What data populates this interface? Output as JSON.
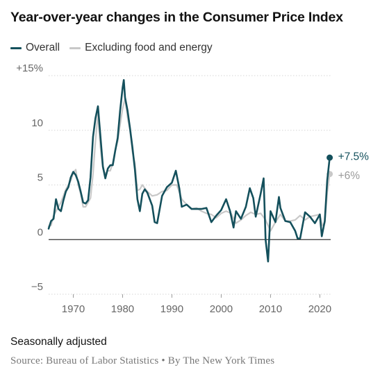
{
  "title": "Year-over-year changes in the Consumer Price Index",
  "legend": {
    "overall": "Overall",
    "core": "Excluding food and energy"
  },
  "note": "Seasonally adjusted",
  "source": "Source: Bureau of Labor Statistics • By The New York Times",
  "colors": {
    "overall": "#14505c",
    "core": "#c8c8c8",
    "zero_line": "#333333",
    "grid": "#d6d6d6",
    "text": "#121212",
    "muted": "#777777"
  },
  "chart_data": {
    "type": "line",
    "xlim": [
      1965,
      2022.2
    ],
    "ylim": [
      -5,
      15
    ],
    "grid": true,
    "y_ticks": [
      {
        "value": 15,
        "label": "+15%"
      },
      {
        "value": 10,
        "label": "10"
      },
      {
        "value": 5,
        "label": "5"
      },
      {
        "value": 0,
        "label": "0"
      },
      {
        "value": -5,
        "label": "−5"
      }
    ],
    "x_ticks": [
      {
        "value": 1970,
        "label": "1970"
      },
      {
        "value": 1980,
        "label": "1980"
      },
      {
        "value": 1990,
        "label": "1990"
      },
      {
        "value": 2000,
        "label": "2000"
      },
      {
        "value": 2010,
        "label": "2010"
      },
      {
        "value": 2020,
        "label": "2020"
      }
    ],
    "series": [
      {
        "name": "Excluding food and energy",
        "key": "core",
        "end_label": "+6%",
        "x": [
          1965.0,
          1965.5,
          1966.0,
          1966.5,
          1967.0,
          1967.5,
          1968.0,
          1968.5,
          1969.0,
          1969.5,
          1970.0,
          1970.5,
          1971.0,
          1971.5,
          1972.0,
          1972.5,
          1973.0,
          1973.5,
          1974.0,
          1974.5,
          1975.0,
          1975.5,
          1976.0,
          1976.5,
          1977.0,
          1977.5,
          1978.0,
          1978.5,
          1979.0,
          1979.5,
          1980.0,
          1980.5,
          1981.0,
          1981.5,
          1982.0,
          1982.5,
          1983.0,
          1983.5,
          1984.0,
          1984.5,
          1985.0,
          1986.0,
          1987.0,
          1988.0,
          1989.0,
          1990.0,
          1991.0,
          1992.0,
          1993.0,
          1994.0,
          1995.0,
          1996.0,
          1997.0,
          1998.0,
          1999.0,
          2000.0,
          2001.0,
          2002.0,
          2003.0,
          2004.0,
          2005.0,
          2006.0,
          2007.0,
          2008.0,
          2009.0,
          2010.0,
          2011.0,
          2012.0,
          2013.0,
          2014.0,
          2015.0,
          2016.0,
          2017.0,
          2018.0,
          2019.0,
          2020.0,
          2020.5,
          2021.0,
          2021.5,
          2022.0
        ],
        "y": [
          1.2,
          1.3,
          2.2,
          2.6,
          3.0,
          3.4,
          4.0,
          4.6,
          5.0,
          5.4,
          6.1,
          6.4,
          5.0,
          4.2,
          3.0,
          3.0,
          3.4,
          3.8,
          6.0,
          9.0,
          11.5,
          8.5,
          6.5,
          6.0,
          6.3,
          6.3,
          7.0,
          8.2,
          9.0,
          10.5,
          12.0,
          12.9,
          11.2,
          10.0,
          8.0,
          7.0,
          4.5,
          4.6,
          5.0,
          4.7,
          4.4,
          4.0,
          4.1,
          4.4,
          4.5,
          5.0,
          5.0,
          3.7,
          3.2,
          2.8,
          2.9,
          2.6,
          2.4,
          2.3,
          2.0,
          2.4,
          2.6,
          2.4,
          1.5,
          1.8,
          2.2,
          2.5,
          2.3,
          2.4,
          1.8,
          0.8,
          1.6,
          2.3,
          1.7,
          1.7,
          1.8,
          2.2,
          1.8,
          2.1,
          2.2,
          2.3,
          1.3,
          1.5,
          4.3,
          6.0
        ]
      },
      {
        "name": "Overall",
        "key": "overall",
        "end_label": "+7.5%",
        "x": [
          1965.0,
          1965.5,
          1966.0,
          1966.5,
          1967.0,
          1967.5,
          1968.0,
          1968.5,
          1969.0,
          1969.5,
          1970.0,
          1970.5,
          1971.0,
          1971.5,
          1972.0,
          1972.5,
          1973.0,
          1973.5,
          1974.0,
          1974.5,
          1975.0,
          1975.5,
          1976.0,
          1976.5,
          1977.0,
          1977.5,
          1978.0,
          1978.5,
          1979.0,
          1979.5,
          1980.0,
          1980.25,
          1980.5,
          1981.0,
          1981.5,
          1982.0,
          1982.5,
          1983.0,
          1983.5,
          1984.0,
          1984.5,
          1985.0,
          1986.0,
          1986.5,
          1987.0,
          1988.0,
          1989.0,
          1990.0,
          1990.8,
          1991.5,
          1992.0,
          1993.0,
          1994.0,
          1995.0,
          1996.0,
          1997.0,
          1998.0,
          1999.0,
          2000.0,
          2001.0,
          2001.8,
          2002.5,
          2003.0,
          2004.0,
          2005.0,
          2005.8,
          2006.5,
          2007.0,
          2008.0,
          2008.6,
          2009.0,
          2009.5,
          2010.0,
          2011.0,
          2011.7,
          2012.0,
          2013.0,
          2014.0,
          2015.0,
          2015.5,
          2016.0,
          2017.0,
          2018.0,
          2019.0,
          2020.0,
          2020.4,
          2021.0,
          2021.5,
          2022.0
        ],
        "y": [
          1.0,
          1.7,
          1.9,
          3.7,
          2.8,
          2.6,
          3.6,
          4.4,
          4.8,
          5.7,
          6.2,
          5.9,
          5.3,
          4.4,
          3.4,
          3.3,
          3.6,
          5.7,
          9.4,
          11.1,
          12.2,
          9.5,
          6.7,
          5.6,
          6.5,
          6.8,
          6.8,
          8.1,
          9.3,
          11.8,
          13.9,
          14.6,
          13.0,
          11.8,
          10.2,
          8.4,
          6.4,
          3.7,
          2.6,
          4.2,
          4.6,
          4.3,
          3.1,
          1.6,
          1.5,
          4.0,
          4.8,
          5.2,
          6.3,
          4.7,
          3.0,
          3.2,
          2.8,
          2.8,
          2.8,
          2.9,
          1.6,
          2.2,
          2.7,
          3.7,
          2.6,
          1.1,
          2.6,
          1.9,
          3.0,
          4.7,
          3.8,
          2.1,
          4.2,
          5.6,
          0.0,
          -2.0,
          2.6,
          1.6,
          3.9,
          2.9,
          1.7,
          1.6,
          0.8,
          0.1,
          0.1,
          2.5,
          2.1,
          1.5,
          2.3,
          0.3,
          1.7,
          5.4,
          7.5
        ]
      }
    ]
  }
}
